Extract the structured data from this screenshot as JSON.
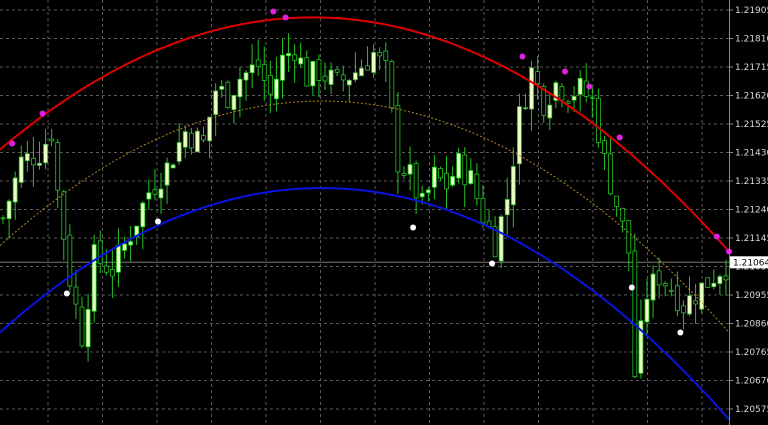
{
  "chart_data": {
    "type": "candlestick",
    "instrument": "",
    "ylim": [
      1.2053,
      1.2196
    ],
    "y_ticks": [
      "1.21905",
      "1.21810",
      "1.21715",
      "1.21620",
      "1.21525",
      "1.21430",
      "1.21335",
      "1.21240",
      "1.21145",
      "1.21050",
      "1.20955",
      "1.20860",
      "1.20765",
      "1.20670",
      "1.20575"
    ],
    "current_price": {
      "value": 1.21064,
      "label": "1.21064"
    },
    "grid": true,
    "bar_count": 120,
    "colors": {
      "background": "#000000",
      "grid": "#5a5a5a",
      "bull_body": "#e8ffc0",
      "bear_body": "#000000",
      "wick": "#22c422",
      "upper_arc": "#e00000",
      "lower_arc": "#0a14e0",
      "mid_arc": "#b08820",
      "peak_marker": "#e020e0",
      "trough_marker": "#ffffff",
      "axis_text": "#d8d8d8",
      "price_line": "#7a7a7a",
      "price_badge": "#ffffff"
    },
    "arcs": {
      "upper": {
        "left": 1.2144,
        "vertex_bar": 50,
        "vertex": 1.2188,
        "right": 1.211,
        "right_bar": 120
      },
      "mid": {
        "left": 1.2112,
        "vertex_bar": 50,
        "vertex": 1.216,
        "right": 1.2083,
        "right_bar": 120
      },
      "lower": {
        "left": 1.2083,
        "vertex_bar": 50,
        "vertex": 1.2131,
        "right": 1.2054,
        "right_bar": 120
      }
    },
    "series": [
      {
        "name": "",
        "x": [
          2,
          7,
          45,
          47,
          86,
          93,
          97,
          102,
          118,
          120
        ],
        "y": [
          1.2146,
          1.2156,
          1.219,
          1.2188,
          1.2175,
          1.217,
          1.2165,
          1.2148,
          1.2115,
          1.211
        ]
      },
      {
        "name": "",
        "x": [
          11,
          26,
          68,
          81,
          104,
          112
        ],
        "y": [
          1.2096,
          1.212,
          1.2118,
          1.2106,
          1.2098,
          1.2083
        ]
      }
    ],
    "price_path": [
      [
        0,
        1.2121
      ],
      [
        3,
        1.214
      ],
      [
        6,
        1.2143
      ],
      [
        8,
        1.215
      ],
      [
        9,
        1.213
      ],
      [
        11,
        1.2101
      ],
      [
        13,
        1.2082
      ],
      [
        15,
        1.2108
      ],
      [
        18,
        1.2104
      ],
      [
        21,
        1.2116
      ],
      [
        24,
        1.213
      ],
      [
        27,
        1.2138
      ],
      [
        30,
        1.215
      ],
      [
        33,
        1.2146
      ],
      [
        35,
        1.2164
      ],
      [
        37,
        1.2162
      ],
      [
        39,
        1.2168
      ],
      [
        42,
        1.2172
      ],
      [
        44,
        1.2162
      ],
      [
        46,
        1.2174
      ],
      [
        48,
        1.2178
      ],
      [
        50,
        1.2168
      ],
      [
        52,
        1.217
      ],
      [
        55,
        1.2166
      ],
      [
        58,
        1.217
      ],
      [
        61,
        1.2176
      ],
      [
        63,
        1.217
      ],
      [
        65,
        1.214
      ],
      [
        67,
        1.2135
      ],
      [
        69,
        1.2125
      ],
      [
        71,
        1.2135
      ],
      [
        73,
        1.2132
      ],
      [
        75,
        1.2139
      ],
      [
        77,
        1.2134
      ],
      [
        79,
        1.2122
      ],
      [
        81,
        1.2113
      ],
      [
        83,
        1.2128
      ],
      [
        85,
        1.2155
      ],
      [
        87,
        1.217
      ],
      [
        89,
        1.216
      ],
      [
        91,
        1.2166
      ],
      [
        93,
        1.2163
      ],
      [
        95,
        1.2164
      ],
      [
        97,
        1.216
      ],
      [
        99,
        1.214
      ],
      [
        101,
        1.2126
      ],
      [
        103,
        1.211
      ],
      [
        104,
        1.2069
      ],
      [
        106,
        1.2096
      ],
      [
        108,
        1.2102
      ],
      [
        110,
        1.2098
      ],
      [
        112,
        1.2092
      ],
      [
        114,
        1.2096
      ],
      [
        116,
        1.21
      ],
      [
        118,
        1.2104
      ],
      [
        120,
        1.2106
      ]
    ]
  }
}
